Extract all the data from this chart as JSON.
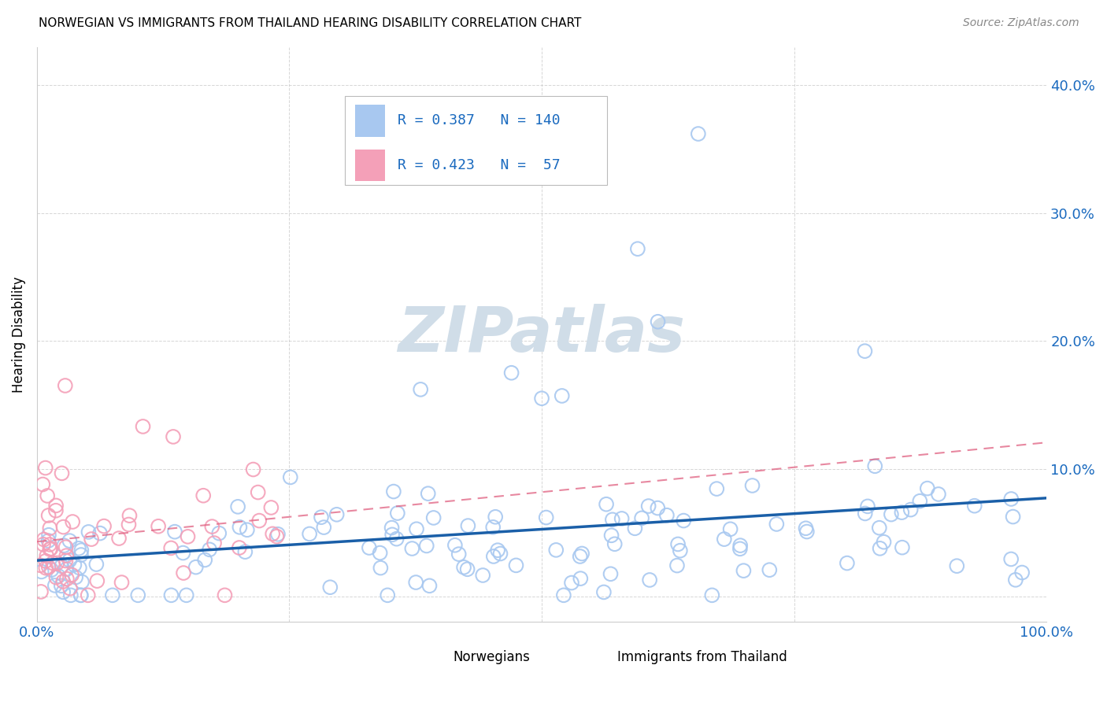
{
  "title": "NORWEGIAN VS IMMIGRANTS FROM THAILAND HEARING DISABILITY CORRELATION CHART",
  "source": "Source: ZipAtlas.com",
  "ylabel": "Hearing Disability",
  "xlim": [
    0.0,
    1.0
  ],
  "ylim": [
    -0.02,
    0.43
  ],
  "norwegian_R": 0.387,
  "norwegian_N": 140,
  "thailand_R": 0.423,
  "thailand_N": 57,
  "norwegian_color": "#a8c8f0",
  "norway_line_color": "#1a5fa8",
  "thailand_color": "#f4a0b8",
  "thailand_line_color": "#e06080",
  "background_color": "#ffffff",
  "grid_color": "#cccccc",
  "watermark": "ZIPatlas",
  "watermark_color": "#d0dde8",
  "legend_R_color": "#1a6abf",
  "tick_color": "#1a6abf"
}
